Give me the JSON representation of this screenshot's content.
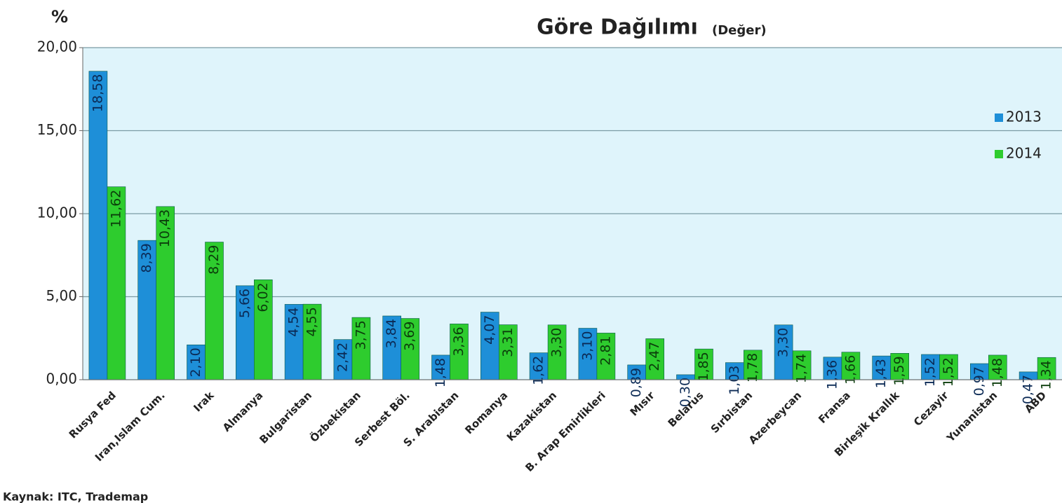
{
  "chart_data": {
    "type": "bar",
    "title": "Göre Dağılımı",
    "subtitle": "(Değer)",
    "y_label": "%",
    "source": "Kaynak: ITC, Trademap",
    "categories": [
      "Rusya Fed",
      "Iran,Islam Cum.",
      "Irak",
      "Almanya",
      "Bulgaristan",
      "Özbekistan",
      "Serbest Böl.",
      "S. Arabistan",
      "Romanya",
      "Kazakistan",
      "B. Arap Emirlikleri",
      "Mısır",
      "Belarus",
      "Sırbistan",
      "Azerbeycan",
      "Fransa",
      "Birleşik Krallık",
      "Cezayir",
      "Yunanistan",
      "ABD"
    ],
    "series": [
      {
        "name": "2013",
        "color": "#1e8fd8",
        "values": [
          18.58,
          8.39,
          2.1,
          5.66,
          4.54,
          2.42,
          3.84,
          1.48,
          4.07,
          1.62,
          3.1,
          0.89,
          0.3,
          1.03,
          3.3,
          1.36,
          1.43,
          1.52,
          0.97,
          0.47
        ],
        "value_labels": [
          "18,58",
          "8,39",
          "2,10",
          "5,66",
          "4,54",
          "2,42",
          "3,84",
          "1,48",
          "4,07",
          "1,62",
          "3,10",
          "0,89",
          "0,30",
          "1,03",
          "3,30",
          "1,36",
          "1,43",
          "1,52",
          "0,97",
          "0,47"
        ]
      },
      {
        "name": "2014",
        "color": "#2ecc2e",
        "values": [
          11.62,
          10.43,
          8.29,
          6.02,
          4.55,
          3.75,
          3.69,
          3.36,
          3.31,
          3.3,
          2.81,
          2.47,
          1.85,
          1.78,
          1.74,
          1.66,
          1.59,
          1.52,
          1.48,
          1.34
        ],
        "value_labels": [
          "11,62",
          "10,43",
          "8,29",
          "6,02",
          "4,55",
          "3,75",
          "3,69",
          "3,36",
          "3,31",
          "3,30",
          "2,81",
          "2,47",
          "1,85",
          "1,78",
          "1,74",
          "1,66",
          "1,59",
          "1,52",
          "1,48",
          "1,34"
        ]
      }
    ],
    "ylim": [
      0,
      20
    ],
    "yticks": [
      {
        "value": 0,
        "label": "0,00"
      },
      {
        "value": 5,
        "label": "5,00"
      },
      {
        "value": 10,
        "label": "10,00"
      },
      {
        "value": 15,
        "label": "15,00"
      },
      {
        "value": 20,
        "label": "20,00"
      }
    ],
    "grid": true,
    "legend": "right"
  }
}
